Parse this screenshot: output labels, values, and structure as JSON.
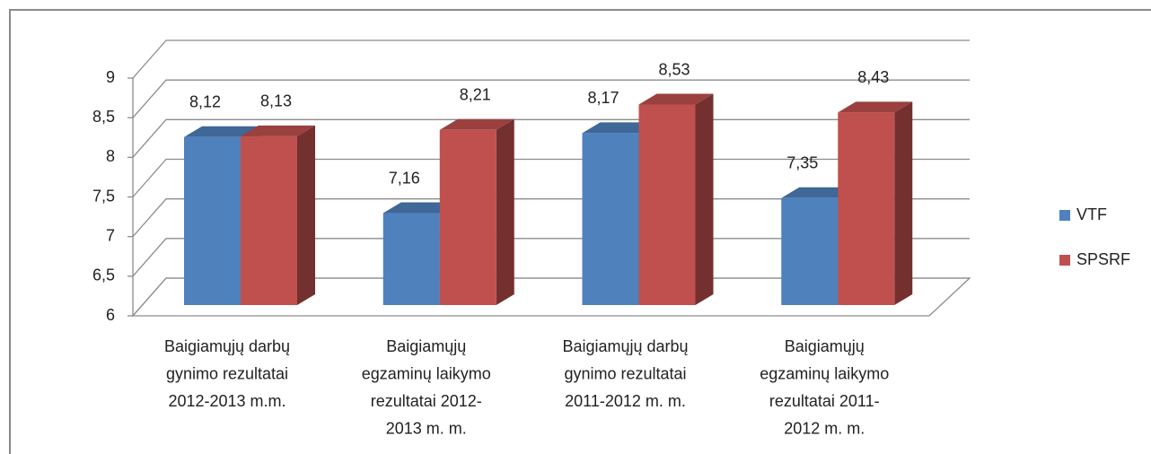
{
  "chart_data": {
    "type": "bar3d",
    "categories": [
      "Baigiamųjų darbų gynimo rezultatai 2012-2013 m.m.",
      "Baigiamųjų egzaminų laikymo rezultatai 2012-2013 m. m.",
      "Baigiamųjų darbų gynimo rezultatai 2011-2012 m. m.",
      "Baigiamųjų egzaminų laikymo rezultatai 2011-2012 m. m."
    ],
    "series": [
      {
        "name": "VTF",
        "color": "#4f81bd",
        "values": [
          8.12,
          7.16,
          8.17,
          7.35
        ],
        "value_labels": [
          "8,12",
          "7,16",
          "8,17",
          "7,35"
        ]
      },
      {
        "name": "SPSRF",
        "color": "#c0504d",
        "values": [
          8.13,
          8.21,
          8.53,
          8.43
        ],
        "value_labels": [
          "8,13",
          "8,21",
          "8,53",
          "8,43"
        ]
      }
    ],
    "ylim": [
      6,
      9
    ],
    "yticks": [
      6,
      {
        "value": 6.5,
        "label": "6,5"
      },
      7,
      {
        "value": 7.5,
        "label": "7,5"
      },
      8,
      {
        "value": 8.5,
        "label": "8,5"
      },
      9
    ],
    "grid": true,
    "legend": "right"
  }
}
